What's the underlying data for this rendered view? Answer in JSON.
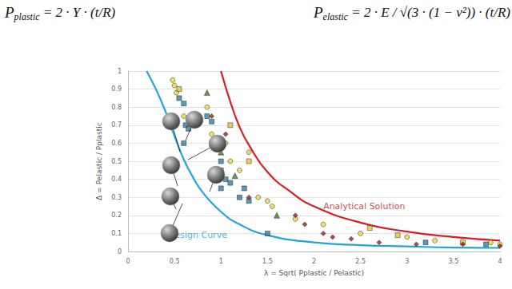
{
  "chart_data": {
    "type": "scatter",
    "formulas": [
      {
        "symbol": "P",
        "subscript": "plastic",
        "expression": "= 2 · Y · (t/R)"
      },
      {
        "symbol": "P",
        "subscript": "elastic",
        "expression": "= 2 · E / √(3 · (1 − ν²)) · (t/R)"
      }
    ],
    "x_label": "λ = Sqrt( Pplastic / Pelastic)",
    "y_label": "Δ = Pelastic / Pplastic",
    "xlim": [
      0,
      4
    ],
    "xticks": [
      0,
      0.5,
      1,
      1.5,
      2,
      2.5,
      3,
      3.5,
      4
    ],
    "ylim": [
      0,
      1
    ],
    "yticks": [
      0,
      0.1,
      0.2,
      0.3,
      0.4,
      0.5,
      0.6,
      0.7,
      0.8,
      0.9,
      1
    ],
    "grid": true,
    "series": [
      {
        "type": "line",
        "color": "#d81e25",
        "line_style": "solid",
        "x": [
          1,
          1.1,
          1.2,
          1.3,
          1.5,
          1.75,
          2,
          2.5,
          3,
          3.5,
          4
        ],
        "values": [
          1,
          0.83,
          0.69,
          0.59,
          0.44,
          0.33,
          0.25,
          0.16,
          0.11,
          0.08,
          0.06
        ]
      },
      {
        "type": "line",
        "color": "#23a3dc",
        "line_style": "solid",
        "x": [
          0.2,
          0.3,
          0.4,
          0.5,
          0.6,
          0.7,
          0.8,
          1.0,
          1.2,
          1.5,
          2,
          2.5,
          3,
          3.5,
          4
        ],
        "values": [
          1.0,
          0.9,
          0.78,
          0.64,
          0.51,
          0.41,
          0.33,
          0.22,
          0.15,
          0.09,
          0.05,
          0.035,
          0.028,
          0.022,
          0.02
        ]
      },
      {
        "type": "scatter",
        "color": "#e8d44d",
        "marker": "circle",
        "x": [
          0.5,
          0.52,
          0.48,
          0.6,
          0.85,
          0.9,
          1.05,
          1.1,
          1.2,
          1.3,
          1.4,
          1.5,
          1.55,
          1.8,
          2.1,
          2.5,
          3.0,
          3.3,
          3.9,
          4.0
        ],
        "values": [
          0.92,
          0.88,
          0.95,
          0.75,
          0.8,
          0.65,
          0.6,
          0.5,
          0.45,
          0.55,
          0.3,
          0.28,
          0.25,
          0.18,
          0.15,
          0.1,
          0.08,
          0.06,
          0.05,
          0.04
        ]
      },
      {
        "type": "scatter",
        "color": "#2f7fa3",
        "marker": "square",
        "x": [
          0.55,
          0.6,
          0.62,
          0.65,
          0.6,
          0.85,
          0.9,
          0.9,
          0.95,
          1.0,
          1.0,
          1.05,
          1.1,
          1.0,
          1.2,
          1.25,
          1.3,
          1.5,
          3.2,
          3.85
        ],
        "values": [
          0.85,
          0.82,
          0.7,
          0.68,
          0.6,
          0.75,
          0.72,
          0.6,
          0.58,
          0.5,
          0.45,
          0.4,
          0.38,
          0.35,
          0.3,
          0.35,
          0.28,
          0.1,
          0.05,
          0.04
        ]
      },
      {
        "type": "scatter",
        "color": "#e0c53a",
        "marker": "square",
        "x": [
          0.55,
          1.1,
          1.3,
          2.6,
          2.9,
          3.6
        ],
        "values": [
          0.9,
          0.7,
          0.5,
          0.13,
          0.09,
          0.05
        ]
      },
      {
        "type": "scatter",
        "color": "#a11d1d",
        "marker": "diamond",
        "x": [
          0.9,
          1.05,
          1.3,
          1.8,
          1.9,
          2.1,
          2.2,
          2.4,
          2.7,
          3.1,
          3.6,
          4.0
        ],
        "values": [
          0.75,
          0.65,
          0.3,
          0.2,
          0.15,
          0.1,
          0.08,
          0.07,
          0.05,
          0.04,
          0.04,
          0.03
        ]
      },
      {
        "type": "scatter",
        "color": "#4a7a2a",
        "marker": "triangle",
        "x": [
          0.85,
          1.0,
          1.15,
          1.6
        ],
        "values": [
          0.88,
          0.55,
          0.42,
          0.2
        ]
      }
    ],
    "annotations": [
      {
        "text": "Analytical Solution",
        "x": 2.1,
        "y": 0.25,
        "color": "#c0161c"
      },
      {
        "text": "Design Curve",
        "x": 0.43,
        "y": 0.09,
        "color": "#1f9bd7"
      }
    ]
  }
}
